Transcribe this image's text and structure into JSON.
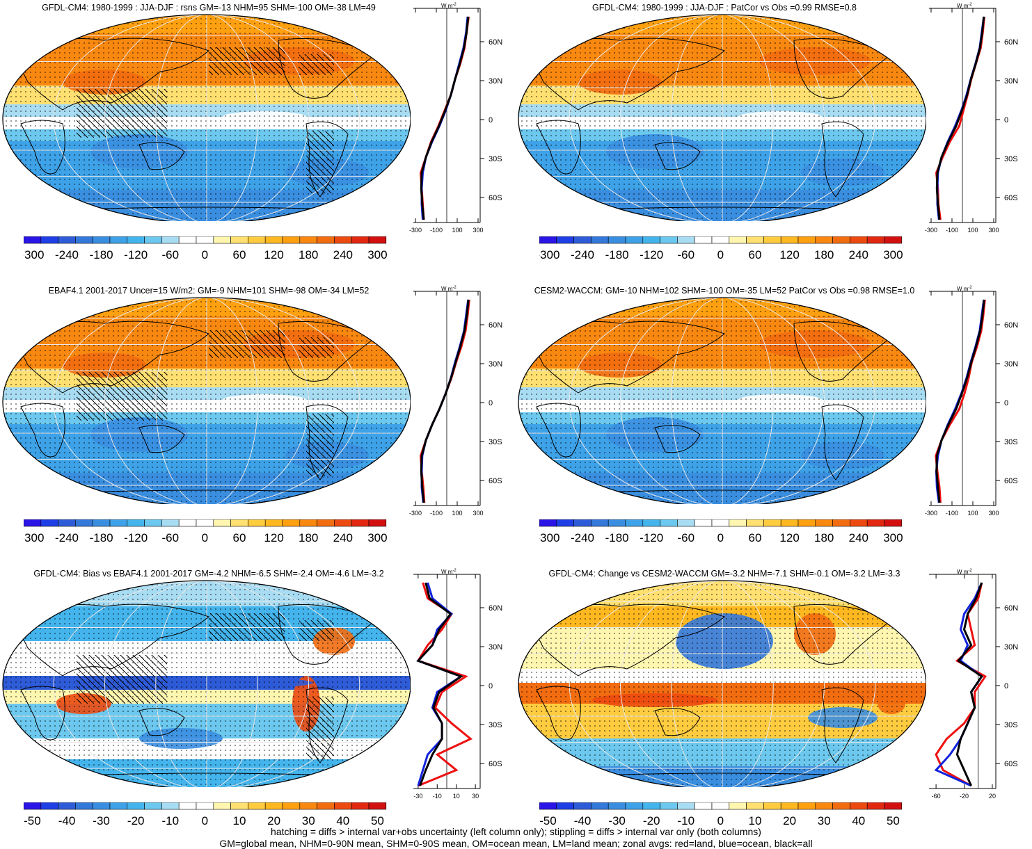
{
  "panels": [
    {
      "title": "GFDL-CM4: 1980-1999 : JJA-DJF : rsns GM=-13 NHM=95 SHM=-100 OM=-38 LM=49",
      "type": "abs",
      "zonal_ticks": [
        "-300",
        "-100",
        "100",
        "300"
      ],
      "colorbar_labels": [
        "-300",
        "-240",
        "-180",
        "-120",
        "-60",
        "0",
        "60",
        "120",
        "180",
        "240",
        "300"
      ],
      "hatch": true,
      "zonal": {
        "red": [
          210,
          190,
          170,
          130,
          80,
          40,
          -20,
          -80,
          -150,
          -200,
          -250,
          -240,
          -230,
          -220
        ],
        "blue": [
          200,
          185,
          160,
          120,
          80,
          40,
          -10,
          -70,
          -140,
          -200,
          -230,
          -240,
          -240,
          -230
        ],
        "black": [
          205,
          190,
          165,
          125,
          80,
          40,
          -15,
          -75,
          -145,
          -200,
          -240,
          -245,
          -235,
          -220
        ]
      }
    },
    {
      "title": "GFDL-CM4: 1980-1999 : JJA-DJF : PatCor vs Obs =0.99 RMSE=0.8",
      "type": "abs",
      "zonal_ticks": [
        "-300",
        "-100",
        "100",
        "300"
      ],
      "colorbar_labels": [
        "-300",
        "-240",
        "-180",
        "-120",
        "-60",
        "0",
        "60",
        "120",
        "180",
        "240",
        "300"
      ],
      "hatch": false,
      "zonal": {
        "red": [
          210,
          195,
          175,
          130,
          85,
          50,
          10,
          -30,
          -120,
          -190,
          -250,
          -235,
          -230,
          -210
        ],
        "blue": [
          205,
          185,
          165,
          125,
          80,
          40,
          -10,
          -70,
          -140,
          -200,
          -235,
          -240,
          -240,
          -225
        ],
        "black": [
          205,
          190,
          168,
          128,
          82,
          45,
          -5,
          -60,
          -135,
          -200,
          -240,
          -245,
          -235,
          -220
        ]
      }
    },
    {
      "title": "EBAF4.1 2001-2017 Uncer=15 W/m2: GM=-9 NHM=101 SHM=-98 OM=-34 LM=52",
      "type": "abs",
      "zonal_ticks": [
        "-300",
        "-100",
        "100",
        "300"
      ],
      "colorbar_labels": [
        "-300",
        "-240",
        "-180",
        "-120",
        "-60",
        "0",
        "60",
        "120",
        "180",
        "240",
        "300"
      ],
      "hatch": true,
      "zonal": {
        "red": [
          215,
          200,
          180,
          140,
          90,
          45,
          -10,
          -70,
          -140,
          -200,
          -250,
          -240,
          -225,
          -215
        ],
        "blue": [
          205,
          185,
          165,
          125,
          80,
          40,
          -10,
          -70,
          -140,
          -200,
          -235,
          -240,
          -240,
          -225
        ],
        "black": [
          208,
          192,
          170,
          130,
          85,
          42,
          -10,
          -70,
          -140,
          -200,
          -240,
          -245,
          -235,
          -220
        ]
      }
    },
    {
      "title": "CESM2-WACCM: GM=-10 NHM=102 SHM=-100 OM=-35 LM=52 PatCor vs Obs =0.98 RMSE=1.0",
      "type": "abs",
      "zonal_ticks": [
        "-300",
        "-100",
        "100",
        "300"
      ],
      "colorbar_labels": [
        "-300",
        "-240",
        "-180",
        "-120",
        "-60",
        "0",
        "60",
        "120",
        "180",
        "240",
        "300"
      ],
      "hatch": false,
      "zonal": {
        "red": [
          215,
          200,
          180,
          140,
          90,
          60,
          20,
          -30,
          -120,
          -200,
          -255,
          -240,
          -220,
          -210
        ],
        "blue": [
          205,
          185,
          165,
          125,
          80,
          40,
          -10,
          -70,
          -140,
          -200,
          -235,
          -250,
          -245,
          -225
        ],
        "black": [
          208,
          192,
          170,
          130,
          85,
          45,
          -5,
          -60,
          -135,
          -200,
          -245,
          -248,
          -235,
          -220
        ]
      }
    },
    {
      "title": "GFDL-CM4: Bias vs EBAF4.1 2001-2017 GM=-4.2 NHM=-6.5 SHM=-2.4 OM=-4.6 LM=-3.2",
      "type": "diff",
      "zonal_ticks": [
        "-30",
        "-10",
        "10",
        "30"
      ],
      "colorbar_labels": [
        "-50",
        "-40",
        "-30",
        "-20",
        "-10",
        "0",
        "10",
        "20",
        "30",
        "40",
        "50"
      ],
      "hatch": true,
      "zonal": {
        "red": [
          -25,
          -20,
          5,
          -5,
          -20,
          -30,
          20,
          -5,
          -12,
          5,
          25,
          -10,
          10,
          -30
        ],
        "blue": [
          -20,
          -15,
          5,
          -10,
          -15,
          -30,
          15,
          -10,
          -15,
          -5,
          -5,
          -20,
          -25,
          -30
        ],
        "black": [
          -22,
          -18,
          4,
          -8,
          -15,
          -30,
          15,
          -8,
          -14,
          -5,
          -5,
          -15,
          -22,
          -28
        ]
      }
    },
    {
      "title": "GFDL-CM4: Change vs CESM2-WACCM GM=-3.2 NHM=-7.1 SHM=-0.1 OM=-3.2 LM=-3.3",
      "type": "diff",
      "zonal_ticks": [
        "-60",
        "-20",
        "20"
      ],
      "colorbar_labels": [
        "-50",
        "-40",
        "-30",
        "-20",
        "-10",
        "0",
        "10",
        "20",
        "30",
        "40",
        "50"
      ],
      "hatch": false,
      "zonal": {
        "red": [
          5,
          0,
          -15,
          -10,
          -5,
          -30,
          10,
          -5,
          -5,
          -20,
          -45,
          -60,
          -50,
          -10
        ],
        "blue": [
          5,
          -5,
          -20,
          -25,
          -15,
          -25,
          5,
          -10,
          -5,
          -15,
          -25,
          -40,
          -60,
          -10
        ],
        "black": [
          5,
          -3,
          -15,
          -20,
          -10,
          -28,
          5,
          -10,
          -5,
          -15,
          -25,
          -30,
          -20,
          -10
        ]
      }
    }
  ],
  "zonal_lat_labels": [
    "60N",
    "30N",
    "0",
    "30S",
    "60S"
  ],
  "zonal_unit": "W m",
  "zonal_unit_sup": "-2",
  "footer": {
    "line1": "hatching = diffs > internal var+obs uncertainty (left column only); stippling = diffs > internal var only (both columns)",
    "line2": "GM=global mean, NHM=0-90N mean, SHM=0-90S mean, OM=ocean mean, LM=land mean; zonal avgs: red=land, blue=ocean, black=all"
  },
  "colors": {
    "scale": [
      "#2a14e6",
      "#1e3ee6",
      "#2e5bd8",
      "#3478da",
      "#3a8ee0",
      "#3ea2e8",
      "#44b4ec",
      "#6cc8ee",
      "#a8dcf2",
      "#ffffff",
      "#ffffff",
      "#fff6b0",
      "#ffe070",
      "#ffcc40",
      "#ffb820",
      "#ffa010",
      "#f98810",
      "#f26c10",
      "#ec4a10",
      "#e22810",
      "#d21010"
    ],
    "series_land": "#ee1111",
    "series_ocean": "#1122dd",
    "series_all": "#000000"
  }
}
